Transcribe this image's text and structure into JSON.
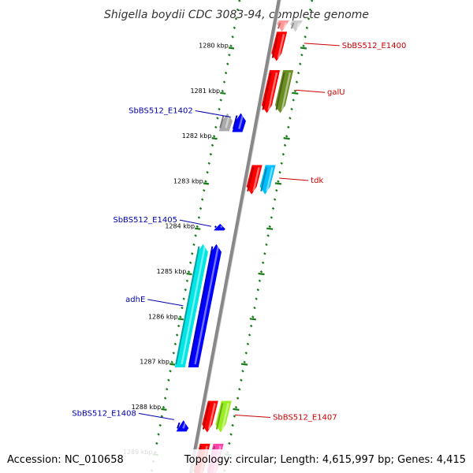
{
  "title": "Shigella boydii CDC 3083-94, complete genome",
  "footer": {
    "accession": "Accession: NC_010658",
    "summary": "Topology: circular; Length: 4,615,997 bp; Genes: 4,415"
  },
  "colors": {
    "backbone": "#888888",
    "tick": "#1a7a1a",
    "forward_label": "#cc0000",
    "reverse_label": "#0000aa"
  },
  "scale": {
    "start_kbp": 1279.5,
    "end_kbp": 1289.6,
    "ticks": [
      {
        "kbp": 1280,
        "label": "1280 kbp"
      },
      {
        "kbp": 1281,
        "label": "1281 kbp"
      },
      {
        "kbp": 1282,
        "label": "1282 kbp"
      },
      {
        "kbp": 1283,
        "label": "1283 kbp"
      },
      {
        "kbp": 1284,
        "label": "1284 kbp"
      },
      {
        "kbp": 1285,
        "label": "1285 kbp"
      },
      {
        "kbp": 1286,
        "label": "1286 kbp"
      },
      {
        "kbp": 1287,
        "label": "1287 kbp"
      },
      {
        "kbp": 1288,
        "label": "1288 kbp"
      },
      {
        "kbp": 1289,
        "label": "1289 kbp"
      }
    ]
  },
  "genes": [
    {
      "name": "",
      "strand": "+",
      "start_kbp": 1279.45,
      "end_kbp": 1279.7,
      "color": "#ff9999",
      "lane": 0
    },
    {
      "name": "",
      "strand": "+",
      "start_kbp": 1279.45,
      "end_kbp": 1279.7,
      "color": "#cccccc",
      "lane": 1
    },
    {
      "name": "SbBS512_E1400",
      "strand": "+",
      "start_kbp": 1279.7,
      "end_kbp": 1280.35,
      "color": "#ff0000",
      "lane": 0
    },
    {
      "name": "galU",
      "strand": "+",
      "start_kbp": 1280.55,
      "end_kbp": 1281.5,
      "color": "#ff0000",
      "lane": 0
    },
    {
      "name": "",
      "strand": "+",
      "start_kbp": 1280.55,
      "end_kbp": 1281.5,
      "color": "#6b8e23",
      "lane": 1
    },
    {
      "name": "",
      "strand": "-",
      "start_kbp": 1281.5,
      "end_kbp": 1281.9,
      "color": "#aaaaaa",
      "lane": 1
    },
    {
      "name": "SbBS512_E1402",
      "strand": "-",
      "start_kbp": 1281.5,
      "end_kbp": 1281.92,
      "color": "#0000ff",
      "lane": 0
    },
    {
      "name": "",
      "strand": "+",
      "start_kbp": 1282.65,
      "end_kbp": 1283.3,
      "color": "#ff0000",
      "lane": 0
    },
    {
      "name": "tdk",
      "strand": "+",
      "start_kbp": 1282.65,
      "end_kbp": 1283.3,
      "color": "#00bfff",
      "lane": 1
    },
    {
      "name": "SbBS512_E1405",
      "strand": "-",
      "start_kbp": 1283.95,
      "end_kbp": 1284.1,
      "color": "#0000ff",
      "lane": 0
    },
    {
      "name": "adhE",
      "strand": "-",
      "start_kbp": 1284.4,
      "end_kbp": 1287.13,
      "color": "#00e5e5",
      "lane": 1
    },
    {
      "name": "",
      "strand": "-",
      "start_kbp": 1284.4,
      "end_kbp": 1287.13,
      "color": "#0000ff",
      "lane": 0
    },
    {
      "name": "SbBS512_E1407",
      "strand": "+",
      "start_kbp": 1287.87,
      "end_kbp": 1288.57,
      "color": "#ff0000",
      "lane": 0
    },
    {
      "name": "",
      "strand": "+",
      "start_kbp": 1287.87,
      "end_kbp": 1288.57,
      "color": "#99ee22",
      "lane": 1
    },
    {
      "name": "SbBS512_E1408",
      "strand": "-",
      "start_kbp": 1288.3,
      "end_kbp": 1288.55,
      "color": "#0000ff",
      "lane": 0
    },
    {
      "name": "",
      "strand": "+",
      "start_kbp": 1288.82,
      "end_kbp": 1289.6,
      "color": "#ff0000",
      "lane": 0
    },
    {
      "name": "",
      "strand": "+",
      "start_kbp": 1288.82,
      "end_kbp": 1289.6,
      "color": "#ff44aa",
      "lane": 1
    }
  ]
}
